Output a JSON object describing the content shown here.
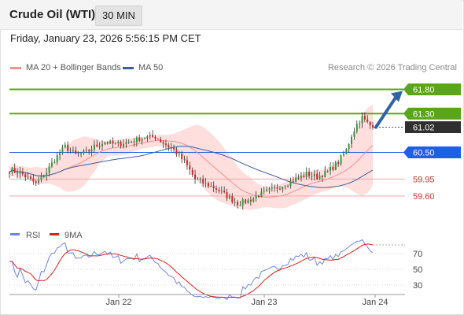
{
  "header": {
    "title": "Crude Oil (WTI)",
    "timeframe": "30 MIN"
  },
  "datetime": "Friday, January 23, 2026 5:56:15 PM CET",
  "legend": [
    {
      "label": "MA 20 + Bollinger Bands",
      "color": "#f4918d"
    },
    {
      "label": "MA 50",
      "color": "#3b5e9c"
    }
  ],
  "credit": "Research © 2026 Trading Central",
  "colors": {
    "resistance": "#5aa519",
    "last": "#2f2f2f",
    "pivot": "#1f5fe8",
    "support": "#e05a5a",
    "bullish": "#2e9a3a",
    "bearish": "#d42424",
    "arrow": "#2f63a8",
    "bb": "#ffdede",
    "rsi": "#6f86e0",
    "rsi_ma": "#e01e1e"
  },
  "chart_data": [
    {
      "type": "candlestick",
      "title": "Crude Oil (WTI)",
      "ylim": [
        58.9,
        62.1
      ],
      "x_ticks": [
        "Jan 22",
        "Jan 23",
        "Jan 24"
      ],
      "candles": [],
      "levels": [
        {
          "value": 61.8,
          "label": "61.80",
          "kind": "resistance"
        },
        {
          "value": 61.3,
          "label": "61.30",
          "kind": "resistance"
        },
        {
          "value": 61.02,
          "label": "61.02",
          "kind": "last"
        },
        {
          "value": 60.5,
          "label": "60.50",
          "kind": "pivot"
        },
        {
          "value": 59.95,
          "label": "59.95",
          "kind": "support"
        },
        {
          "value": 59.6,
          "label": "59.60",
          "kind": "support"
        }
      ]
    },
    {
      "type": "line",
      "legend": [
        "RSI",
        "9MA"
      ],
      "ylim": [
        20,
        82
      ],
      "y_ticks": [
        "70",
        "50",
        "30"
      ],
      "series": [
        {
          "name": "RSI",
          "values": []
        },
        {
          "name": "9MA",
          "values": []
        }
      ]
    }
  ]
}
